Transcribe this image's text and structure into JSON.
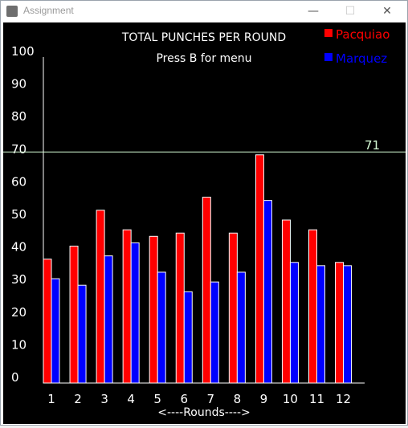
{
  "window": {
    "title": "Assignment",
    "minimize_glyph": "—",
    "maximize_glyph": "☐",
    "close_glyph": "✕",
    "icon": "java-app-icon"
  },
  "chart_data": {
    "type": "bar",
    "title": "TOTAL PUNCHES PER ROUND",
    "subtitle": "Press B for menu",
    "xlabel": "<----Rounds---->",
    "ylabel": "",
    "ylim": [
      0,
      100
    ],
    "yticks": [
      "0",
      "10",
      "20",
      "30",
      "40",
      "50",
      "60",
      "70",
      "80",
      "90",
      "100"
    ],
    "categories": [
      "1",
      "2",
      "3",
      "4",
      "5",
      "6",
      "7",
      "8",
      "9",
      "10",
      "11",
      "12"
    ],
    "series": [
      {
        "name": "Pacquiao",
        "color": "#ff0000",
        "values": [
          38,
          42,
          53,
          47,
          45,
          46,
          57,
          46,
          70,
          50,
          47,
          37
        ]
      },
      {
        "name": "Marquez",
        "color": "#0000ff",
        "values": [
          32,
          30,
          39,
          43,
          34,
          28,
          31,
          34,
          56,
          37,
          36,
          36
        ]
      }
    ],
    "reference_line": {
      "value": 71,
      "label": "71",
      "color": "#d8ffd8"
    },
    "legend": "top-right",
    "grid": false
  }
}
